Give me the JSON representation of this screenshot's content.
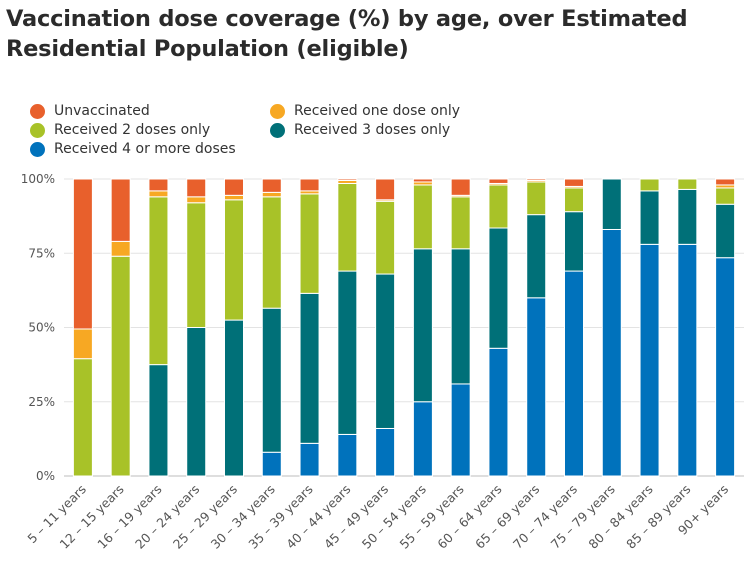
{
  "chart_data": {
    "type": "bar",
    "stacked": true,
    "title": "Vaccination dose coverage (%) by age, over Estimated Residential Population (eligible)",
    "xlabel": "",
    "ylabel": "",
    "ylim": [
      0,
      100
    ],
    "y_ticks": [
      "0%",
      "25%",
      "50%",
      "75%",
      "100%"
    ],
    "grid": "horizontal",
    "legend_position": "top-left",
    "categories": [
      "5 – 11 years",
      "12 – 15 years",
      "16 – 19 years",
      "20 – 24 years",
      "25 – 29 years",
      "30 – 34 years",
      "35 – 39 years",
      "40 – 44 years",
      "45 – 49 years",
      "50 – 54 years",
      "55 – 59 years",
      "60 – 64 years",
      "65 – 69 years",
      "70 – 74 years",
      "75 – 79 years",
      "80 – 84 years",
      "85 – 89 years",
      "90+ years"
    ],
    "series": [
      {
        "name": "Received 4 or more doses",
        "color": "#0072bc",
        "values": [
          0,
          0,
          0,
          0,
          0,
          8,
          11,
          14,
          16,
          25,
          31,
          43,
          60,
          69,
          83,
          78,
          78,
          73.5
        ]
      },
      {
        "name": "Received 3 doses only",
        "color": "#007078",
        "values": [
          0,
          0,
          37.5,
          50,
          52.5,
          48.5,
          50.5,
          55,
          52,
          51.5,
          45.5,
          40.5,
          28,
          20,
          17,
          18,
          18.5,
          18
        ]
      },
      {
        "name": "Received 2 doses only",
        "color": "#a8c228",
        "values": [
          39.5,
          74,
          56.5,
          42,
          40.5,
          37.5,
          33.5,
          29.5,
          24.5,
          21.5,
          17.5,
          14.5,
          11,
          8,
          0,
          4,
          3.5,
          5.5
        ]
      },
      {
        "name": "Received one dose only",
        "color": "#f7a823",
        "values": [
          10,
          5,
          2,
          2,
          1.5,
          1.5,
          1,
          1,
          0.5,
          1,
          0.5,
          0.5,
          0.5,
          0.5,
          0,
          0,
          0,
          1
        ]
      },
      {
        "name": "Unvaccinated",
        "color": "#e8602c",
        "values": [
          50.5,
          21,
          4,
          6,
          5.5,
          4.5,
          4,
          0.5,
          7,
          1,
          5.5,
          1.5,
          0.5,
          2.5,
          0,
          0,
          0,
          2
        ]
      }
    ]
  },
  "legend": {
    "items": [
      {
        "label": "Unvaccinated",
        "color": "#e8602c"
      },
      {
        "label": "Received one dose only",
        "color": "#f7a823"
      },
      {
        "label": "Received 2 doses only",
        "color": "#a8c228"
      },
      {
        "label": "Received 3 doses only",
        "color": "#007078"
      },
      {
        "label": "Received 4 or more doses",
        "color": "#0072bc"
      }
    ]
  }
}
